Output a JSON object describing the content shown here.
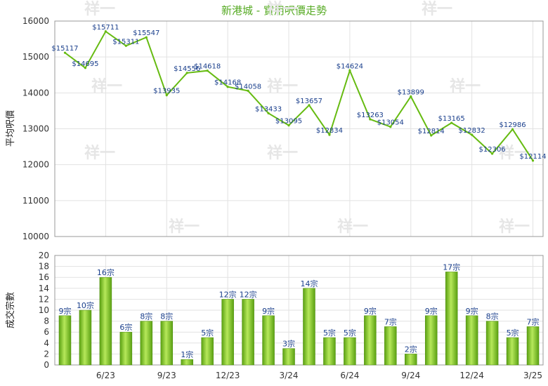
{
  "chart_data": [
    {
      "type": "line",
      "title": "新港城 - 實用呎價走勢",
      "ylabel": "平均呎價",
      "ylim": [
        10000,
        16000
      ],
      "yticks": [
        10000,
        11000,
        12000,
        13000,
        14000,
        15000,
        16000
      ],
      "xticks": [
        "6/23",
        "9/23",
        "12/23",
        "3/24",
        "6/24",
        "9/24",
        "12/24",
        "3/25"
      ],
      "x": [
        "2023-04",
        "2023-05",
        "2023-06",
        "2023-07",
        "2023-08",
        "2023-09",
        "2023-10",
        "2023-11",
        "2023-12",
        "2024-01",
        "2024-02",
        "2024-03",
        "2024-04",
        "2024-05",
        "2024-06",
        "2024-07",
        "2024-08",
        "2024-09",
        "2024-10",
        "2024-11",
        "2024-12",
        "2025-01",
        "2025-02",
        "2025-03"
      ],
      "values": [
        15117,
        14695,
        15711,
        15311,
        15547,
        13935,
        14556,
        14618,
        14168,
        14058,
        13433,
        13095,
        13657,
        12834,
        14624,
        13263,
        13054,
        13899,
        12814,
        13165,
        12832,
        12306,
        12986,
        12114
      ],
      "labels": [
        "$15117",
        "$14695",
        "$15711",
        "$15311",
        "$15547",
        "$13935",
        "$14556",
        "$14618",
        "$14168",
        "$14058",
        "$13433",
        "$13095",
        "$13657",
        "$12834",
        "$14624",
        "$13263",
        "$13054",
        "$13899",
        "$12814",
        "$13165",
        "$12832",
        "$12306",
        "$12986",
        "$12114"
      ],
      "color": "#66bb11",
      "grid": true,
      "watermark": "祥一"
    },
    {
      "type": "bar",
      "ylabel": "成交宗數",
      "ylim": [
        0,
        20
      ],
      "yticks": [
        0,
        2,
        4,
        6,
        8,
        10,
        12,
        14,
        16,
        18,
        20
      ],
      "xticks": [
        "6/23",
        "9/23",
        "12/23",
        "3/24",
        "6/24",
        "9/24",
        "12/24",
        "3/25"
      ],
      "values": [
        9,
        10,
        16,
        6,
        8,
        8,
        1,
        5,
        12,
        12,
        9,
        3,
        14,
        5,
        5,
        9,
        7,
        2,
        9,
        17,
        9,
        8,
        5,
        7
      ],
      "labels": [
        "9宗",
        "10宗",
        "16宗",
        "6宗",
        "8宗",
        "8宗",
        "1宗",
        "5宗",
        "12宗",
        "12宗",
        "9宗",
        "3宗",
        "14宗",
        "5宗",
        "5宗",
        "9宗",
        "7宗",
        "2宗",
        "9宗",
        "17宗",
        "9宗",
        "8宗",
        "5宗",
        "7宗"
      ],
      "color": "#7cc61e",
      "grid": true
    }
  ]
}
